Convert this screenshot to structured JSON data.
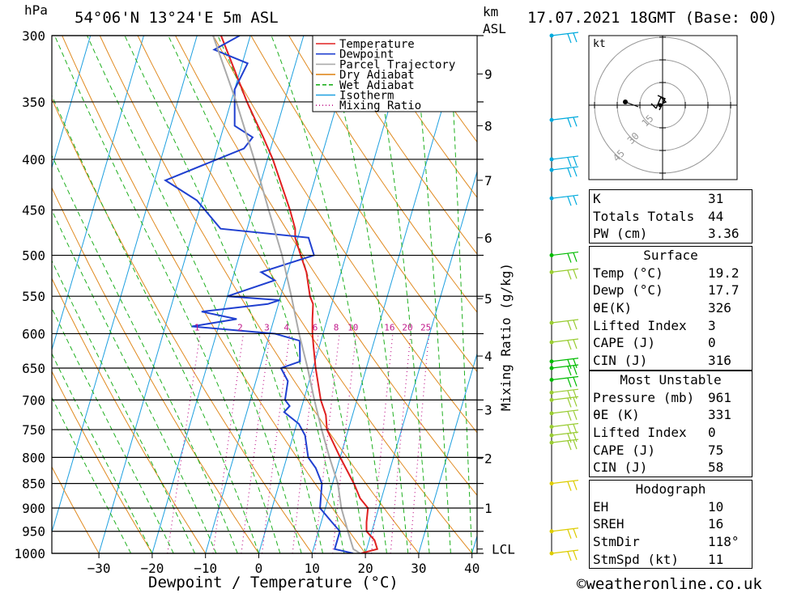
{
  "header": {
    "unit_left": "hPa",
    "location": "54°06'N  13°24'E  5m  ASL",
    "unit_right_1": "km",
    "unit_right_2": "ASL",
    "datetime": "17.07.2021  18GMT  (Base: 00)"
  },
  "footer": {
    "xlabel": "Dewpoint / Temperature (°C)",
    "ylabel_right": "Mixing Ratio (g/kg)",
    "credit": "©weatheronline.co.uk"
  },
  "chart_data": {
    "type": "line",
    "title": "54°06'N 13°24'E 5m ASL",
    "xlabel": "Dewpoint / Temperature (°C)",
    "ylabel": "hPa",
    "x_ticks": [
      -30,
      -20,
      -10,
      0,
      10,
      20,
      30,
      40
    ],
    "pressure_levels": [
      300,
      350,
      400,
      450,
      500,
      550,
      600,
      650,
      700,
      750,
      800,
      850,
      900,
      950,
      1000
    ],
    "km_ticks": [
      {
        "km": "9",
        "p": 328
      },
      {
        "km": "8",
        "p": 370
      },
      {
        "km": "7",
        "p": 420
      },
      {
        "km": "6",
        "p": 480
      },
      {
        "km": "5",
        "p": 553
      },
      {
        "km": "4",
        "p": 632
      },
      {
        "km": "3",
        "p": 716
      },
      {
        "km": "2",
        "p": 802
      },
      {
        "km": "1",
        "p": 900
      },
      {
        "km": "LCL",
        "p": 990
      }
    ],
    "mixing_ratio_labels": [
      "1",
      "2",
      "3",
      "4",
      "6",
      "8",
      "10",
      "16",
      "20",
      "25"
    ],
    "legend": [
      "Temperature",
      "Dewpoint",
      "Parcel Trajectory",
      "Dry Adiabat",
      "Wet Adiabat",
      "Isotherm",
      "Mixing Ratio"
    ],
    "series": [
      {
        "name": "Temperature",
        "color": "#e02020",
        "points": [
          [
            1000,
            19.2
          ],
          [
            990,
            22
          ],
          [
            970,
            21
          ],
          [
            950,
            19
          ],
          [
            930,
            18.5
          ],
          [
            900,
            18
          ],
          [
            880,
            16
          ],
          [
            850,
            14
          ],
          [
            800,
            10
          ],
          [
            750,
            6
          ],
          [
            725,
            5
          ],
          [
            700,
            3.2
          ],
          [
            650,
            0.5
          ],
          [
            620,
            -1
          ],
          [
            600,
            -2
          ],
          [
            580,
            -2.8
          ],
          [
            560,
            -3.5
          ],
          [
            550,
            -4.5
          ],
          [
            520,
            -6.5
          ],
          [
            500,
            -8.5
          ],
          [
            480,
            -10.5
          ],
          [
            470,
            -11
          ],
          [
            450,
            -13
          ],
          [
            400,
            -19
          ],
          [
            380,
            -22
          ],
          [
            350,
            -27
          ],
          [
            300,
            -35.5
          ]
        ]
      },
      {
        "name": "Dewpoint",
        "color": "#2040d0",
        "points": [
          [
            1000,
            17.7
          ],
          [
            990,
            14
          ],
          [
            970,
            14
          ],
          [
            950,
            14
          ],
          [
            930,
            12
          ],
          [
            900,
            9
          ],
          [
            850,
            8
          ],
          [
            820,
            6
          ],
          [
            800,
            4
          ],
          [
            760,
            2.2
          ],
          [
            740,
            0.4
          ],
          [
            720,
            -3
          ],
          [
            710,
            -2.3
          ],
          [
            700,
            -3.5
          ],
          [
            670,
            -4
          ],
          [
            650,
            -6
          ],
          [
            640,
            -2.8
          ],
          [
            610,
            -4
          ],
          [
            600,
            -9
          ],
          [
            590,
            -25
          ],
          [
            580,
            -17
          ],
          [
            570,
            -24
          ],
          [
            560,
            -12
          ],
          [
            555,
            -10
          ],
          [
            550,
            -20
          ],
          [
            530,
            -12
          ],
          [
            520,
            -15
          ],
          [
            500,
            -6
          ],
          [
            480,
            -8
          ],
          [
            470,
            -25
          ],
          [
            440,
            -31
          ],
          [
            420,
            -38
          ],
          [
            390,
            -25
          ],
          [
            380,
            -24
          ],
          [
            370,
            -28
          ],
          [
            340,
            -30
          ],
          [
            320,
            -29
          ],
          [
            310,
            -36
          ],
          [
            300,
            -32
          ]
        ]
      },
      {
        "name": "Parcel Trajectory",
        "color": "#aaaaaa",
        "points": [
          [
            1000,
            19
          ],
          [
            990,
            17.5
          ],
          [
            950,
            15.5
          ],
          [
            900,
            13
          ],
          [
            850,
            11
          ],
          [
            800,
            8
          ],
          [
            750,
            5
          ],
          [
            700,
            2
          ],
          [
            650,
            -1
          ],
          [
            600,
            -4.5
          ],
          [
            550,
            -8
          ],
          [
            500,
            -12
          ],
          [
            450,
            -17
          ],
          [
            400,
            -22.5
          ],
          [
            350,
            -29
          ],
          [
            300,
            -37
          ]
        ]
      }
    ]
  },
  "wind_barbs": [
    {
      "p": 300,
      "color": "#00aadd"
    },
    {
      "p": 365,
      "color": "#00aadd"
    },
    {
      "p": 400,
      "color": "#00aadd"
    },
    {
      "p": 410,
      "color": "#00aadd"
    },
    {
      "p": 438,
      "color": "#00aadd"
    },
    {
      "p": 500,
      "color": "#00bb00"
    },
    {
      "p": 520,
      "color": "#99cc33"
    },
    {
      "p": 585,
      "color": "#99cc33"
    },
    {
      "p": 612,
      "color": "#99cc33"
    },
    {
      "p": 640,
      "color": "#00bb00"
    },
    {
      "p": 650,
      "color": "#00bb00"
    },
    {
      "p": 668,
      "color": "#00bb00"
    },
    {
      "p": 688,
      "color": "#99cc33"
    },
    {
      "p": 700,
      "color": "#99cc33"
    },
    {
      "p": 722,
      "color": "#99cc33"
    },
    {
      "p": 745,
      "color": "#99cc33"
    },
    {
      "p": 760,
      "color": "#99cc33"
    },
    {
      "p": 773,
      "color": "#99cc33"
    },
    {
      "p": 850,
      "color": "#ddcc00"
    },
    {
      "p": 950,
      "color": "#ddcc00"
    },
    {
      "p": 1000,
      "color": "#ddcc00"
    }
  ],
  "hodograph": {
    "unit": "kt",
    "rings": [
      "15",
      "30",
      "45"
    ]
  },
  "indices": {
    "k": {
      "label": "K",
      "value": "31"
    },
    "tt": {
      "label": "Totals Totals",
      "value": "44"
    },
    "pw": {
      "label": "PW (cm)",
      "value": "3.36"
    }
  },
  "surface": {
    "title": "Surface",
    "rows": [
      {
        "label": "Temp (°C)",
        "value": "19.2"
      },
      {
        "label": "Dewp (°C)",
        "value": "17.7"
      },
      {
        "label": "θE(K)",
        "value": "326"
      },
      {
        "label": "Lifted Index",
        "value": "3"
      },
      {
        "label": "CAPE (J)",
        "value": "0"
      },
      {
        "label": "CIN (J)",
        "value": "316"
      }
    ]
  },
  "most_unstable": {
    "title": "Most Unstable",
    "rows": [
      {
        "label": "Pressure (mb)",
        "value": "961"
      },
      {
        "label": "θE (K)",
        "value": "331"
      },
      {
        "label": "Lifted Index",
        "value": "0"
      },
      {
        "label": "CAPE (J)",
        "value": "75"
      },
      {
        "label": "CIN (J)",
        "value": "58"
      }
    ]
  },
  "hodo_table": {
    "title": "Hodograph",
    "rows": [
      {
        "label": "EH",
        "value": "10"
      },
      {
        "label": "SREH",
        "value": "16"
      },
      {
        "label": "StmDir",
        "value": "118°"
      },
      {
        "label": "StmSpd (kt)",
        "value": "11"
      }
    ]
  }
}
